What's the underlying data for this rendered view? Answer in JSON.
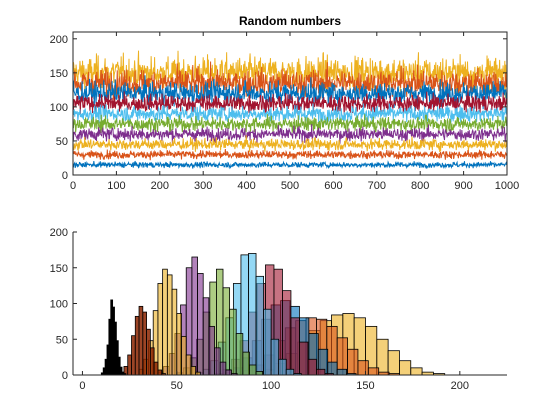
{
  "chart_data": [
    {
      "type": "line",
      "title": "Random numbers",
      "xlabel": "",
      "ylabel": "",
      "xlim": [
        0,
        1000
      ],
      "ylim": [
        0,
        210
      ],
      "xticks": [
        0,
        100,
        200,
        300,
        400,
        500,
        600,
        700,
        800,
        900,
        1000
      ],
      "yticks": [
        0,
        50,
        100,
        150,
        200
      ],
      "n_points": 1000,
      "grid": false,
      "series": [
        {
          "mean": 15,
          "spread": 3.5,
          "color": "#0072BD"
        },
        {
          "mean": 30,
          "spread": 5,
          "color": "#D95319"
        },
        {
          "mean": 45,
          "spread": 7,
          "color": "#EDB120"
        },
        {
          "mean": 60,
          "spread": 8,
          "color": "#7E2F8E"
        },
        {
          "mean": 75,
          "spread": 9,
          "color": "#77AC30"
        },
        {
          "mean": 90,
          "spread": 10,
          "color": "#4DBEEE"
        },
        {
          "mean": 105,
          "spread": 11,
          "color": "#A2142F"
        },
        {
          "mean": 120,
          "spread": 14,
          "color": "#0072BD"
        },
        {
          "mean": 135,
          "spread": 17,
          "color": "#D95319"
        },
        {
          "mean": 150,
          "spread": 20,
          "color": "#EDB120"
        }
      ]
    },
    {
      "type": "bar",
      "subtype": "overlaid-histogram",
      "title": "",
      "xlabel": "",
      "ylabel": "",
      "xlim": [
        -5,
        225
      ],
      "ylim": [
        0,
        200
      ],
      "xticks": [
        0,
        50,
        100,
        150,
        200
      ],
      "yticks": [
        0,
        50,
        100,
        150,
        200
      ],
      "grid": false,
      "series": [
        {
          "color": "#000000",
          "opacity": 1.0,
          "bin_start": 10,
          "bin_width": 1,
          "values": [
            3,
            10,
            22,
            42,
            78,
            105,
            95,
            74,
            48,
            25,
            11,
            4,
            2
          ]
        },
        {
          "color": "#8B2500",
          "opacity": 0.85,
          "bin_start": 20,
          "bin_width": 2,
          "values": [
            4,
            12,
            28,
            55,
            82,
            96,
            88,
            64,
            38,
            18,
            7,
            2
          ]
        },
        {
          "color": "#EDB120",
          "opacity": 0.6,
          "bin_start": 30,
          "bin_width": 2.5,
          "values": [
            8,
            22,
            48,
            90,
            128,
            148,
            140,
            120,
            86,
            54,
            28,
            12,
            4
          ]
        },
        {
          "color": "#7E2F8E",
          "opacity": 0.6,
          "bin_start": 40,
          "bin_width": 3,
          "values": [
            4,
            12,
            30,
            58,
            98,
            150,
            165,
            142,
            108,
            68,
            38,
            18,
            7,
            2
          ]
        },
        {
          "color": "#77AC30",
          "opacity": 0.6,
          "bin_start": 50,
          "bin_width": 3.5,
          "values": [
            3,
            10,
            24,
            50,
            88,
            130,
            148,
            122,
            92,
            58,
            32,
            14,
            5
          ]
        },
        {
          "color": "#4DBEEE",
          "opacity": 0.6,
          "bin_start": 60,
          "bin_width": 4,
          "values": [
            3,
            8,
            20,
            46,
            80,
            128,
            168,
            170,
            138,
            92,
            50,
            22,
            8,
            2
          ]
        },
        {
          "color": "#A2142F",
          "opacity": 0.6,
          "bin_start": 70,
          "bin_width": 4.5,
          "values": [
            2,
            8,
            22,
            48,
            88,
            128,
            154,
            148,
            118,
            80,
            46,
            22,
            8,
            2
          ]
        },
        {
          "color": "#0072BD",
          "opacity": 0.6,
          "bin_start": 75,
          "bin_width": 5,
          "values": [
            3,
            10,
            24,
            48,
            78,
            98,
            104,
            96,
            80,
            58,
            36,
            18,
            8,
            2
          ]
        },
        {
          "color": "#D95319",
          "opacity": 0.6,
          "bin_start": 80,
          "bin_width": 5.5,
          "values": [
            2,
            6,
            14,
            28,
            48,
            66,
            76,
            80,
            78,
            68,
            52,
            36,
            20,
            10,
            4,
            2
          ]
        },
        {
          "color": "#EDB120",
          "opacity": 0.6,
          "bin_start": 90,
          "bin_width": 6,
          "values": [
            3,
            8,
            16,
            30,
            46,
            62,
            76,
            84,
            86,
            80,
            68,
            50,
            34,
            20,
            10,
            4,
            2
          ]
        }
      ]
    }
  ]
}
